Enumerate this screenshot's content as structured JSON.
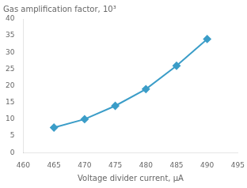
{
  "chart_data": {
    "type": "line",
    "ylabel": "Gas amplification factor, 10³",
    "xlabel": "Voltage divider current, μA",
    "x": [
      465,
      470,
      475,
      480,
      485,
      490
    ],
    "values": [
      7.5,
      10.0,
      14.0,
      19.0,
      26.0,
      34.0
    ],
    "color": "#3b9dc8",
    "marker": "diamond",
    "xlim": [
      460,
      495
    ],
    "ylim": [
      0,
      40
    ],
    "xticks": [
      460,
      465,
      470,
      475,
      480,
      485,
      490,
      495
    ],
    "yticks": [
      0,
      5,
      10,
      15,
      20,
      25,
      30,
      35,
      40
    ],
    "grid": false
  }
}
